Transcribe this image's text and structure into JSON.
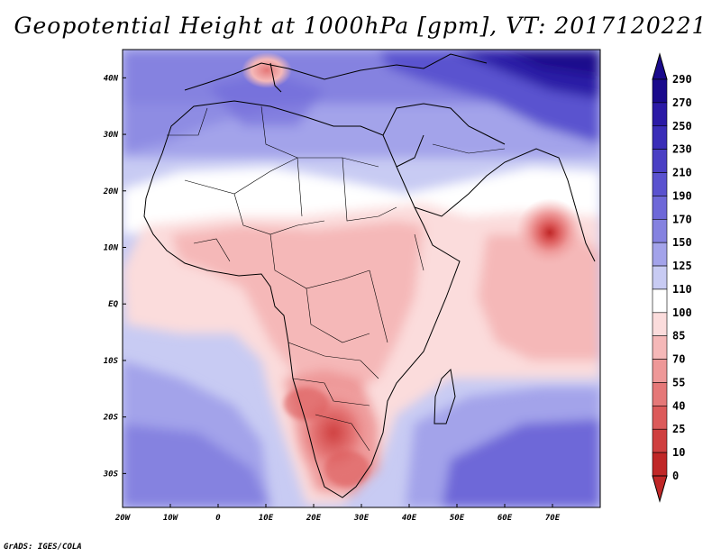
{
  "title": "Geopotential Height at 1000hPa [gpm], VT: 2017120221",
  "credit": "GrADS: IGES/COLA",
  "map": {
    "projection": "latlon",
    "lon_range": [
      -20,
      80
    ],
    "lat_range": [
      -36,
      45
    ],
    "x_ticks": [
      "20W",
      "10W",
      "0",
      "10E",
      "20E",
      "30E",
      "40E",
      "50E",
      "60E",
      "70E"
    ],
    "x_tick_lons": [
      -20,
      -10,
      0,
      10,
      20,
      30,
      40,
      50,
      60,
      70
    ],
    "y_ticks": [
      "40N",
      "30N",
      "20N",
      "10N",
      "EQ",
      "10S",
      "20S",
      "30S"
    ],
    "y_tick_lats": [
      40,
      30,
      20,
      10,
      0,
      -10,
      -20,
      -30
    ],
    "features": [
      "Mediterranean high ~60 gpm near Italy",
      "Arabian Sea low center ~40 gpm near 68E 12N",
      "Southern Africa low ~40-70 gpm",
      "Central Asia high >250 gpm"
    ]
  },
  "colorbar": {
    "labels": [
      "290",
      "270",
      "250",
      "230",
      "210",
      "190",
      "170",
      "150",
      "125",
      "110",
      "100",
      "85",
      "70",
      "55",
      "40",
      "25",
      "10",
      "0"
    ],
    "colors": [
      "#1a0a8c",
      "#2b1aa6",
      "#3a2db8",
      "#4a3fc4",
      "#5a52cf",
      "#6e68d8",
      "#8582e0",
      "#a3a3ea",
      "#c8cbf3",
      "#ffffff",
      "#fbdcdc",
      "#f5b8b8",
      "#ee9898",
      "#e57878",
      "#dc5a5a",
      "#cf3f3f",
      "#c02727"
    ]
  }
}
